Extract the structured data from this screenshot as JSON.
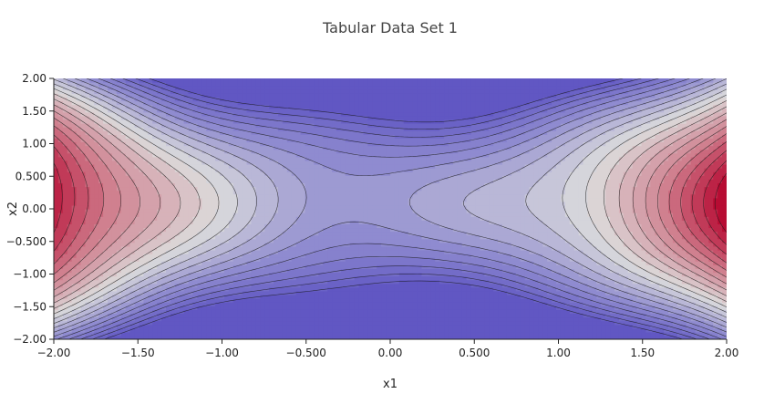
{
  "chart_data": {
    "type": "contour",
    "title": "Tabular Data Set 1",
    "xlabel": "x1",
    "ylabel": "x2",
    "xlim": [
      -2,
      2
    ],
    "ylim": [
      -2,
      2
    ],
    "x_ticks": [
      -2,
      -1.5,
      -1,
      -0.5,
      0,
      0.5,
      1,
      1.5,
      2
    ],
    "x_tick_labels": [
      "−2.00",
      "−1.50",
      "−1.00",
      "−0.500",
      "0.00",
      "0.500",
      "1.00",
      "1.50",
      "2.00"
    ],
    "y_ticks": [
      2,
      1.5,
      1,
      0.5,
      0,
      -0.5,
      -1,
      -1.5,
      -2
    ],
    "y_tick_labels": [
      "2.00",
      "1.50",
      "1.00",
      "0.500",
      "0.00",
      "−0.500",
      "−1.00",
      "−1.50",
      "−2.00"
    ],
    "colorscale": [
      "#5c52c2",
      "#8f8bd0",
      "#dcdcdc",
      "#d0808f",
      "#b4002a"
    ],
    "contour_lines": true,
    "grid": false
  }
}
